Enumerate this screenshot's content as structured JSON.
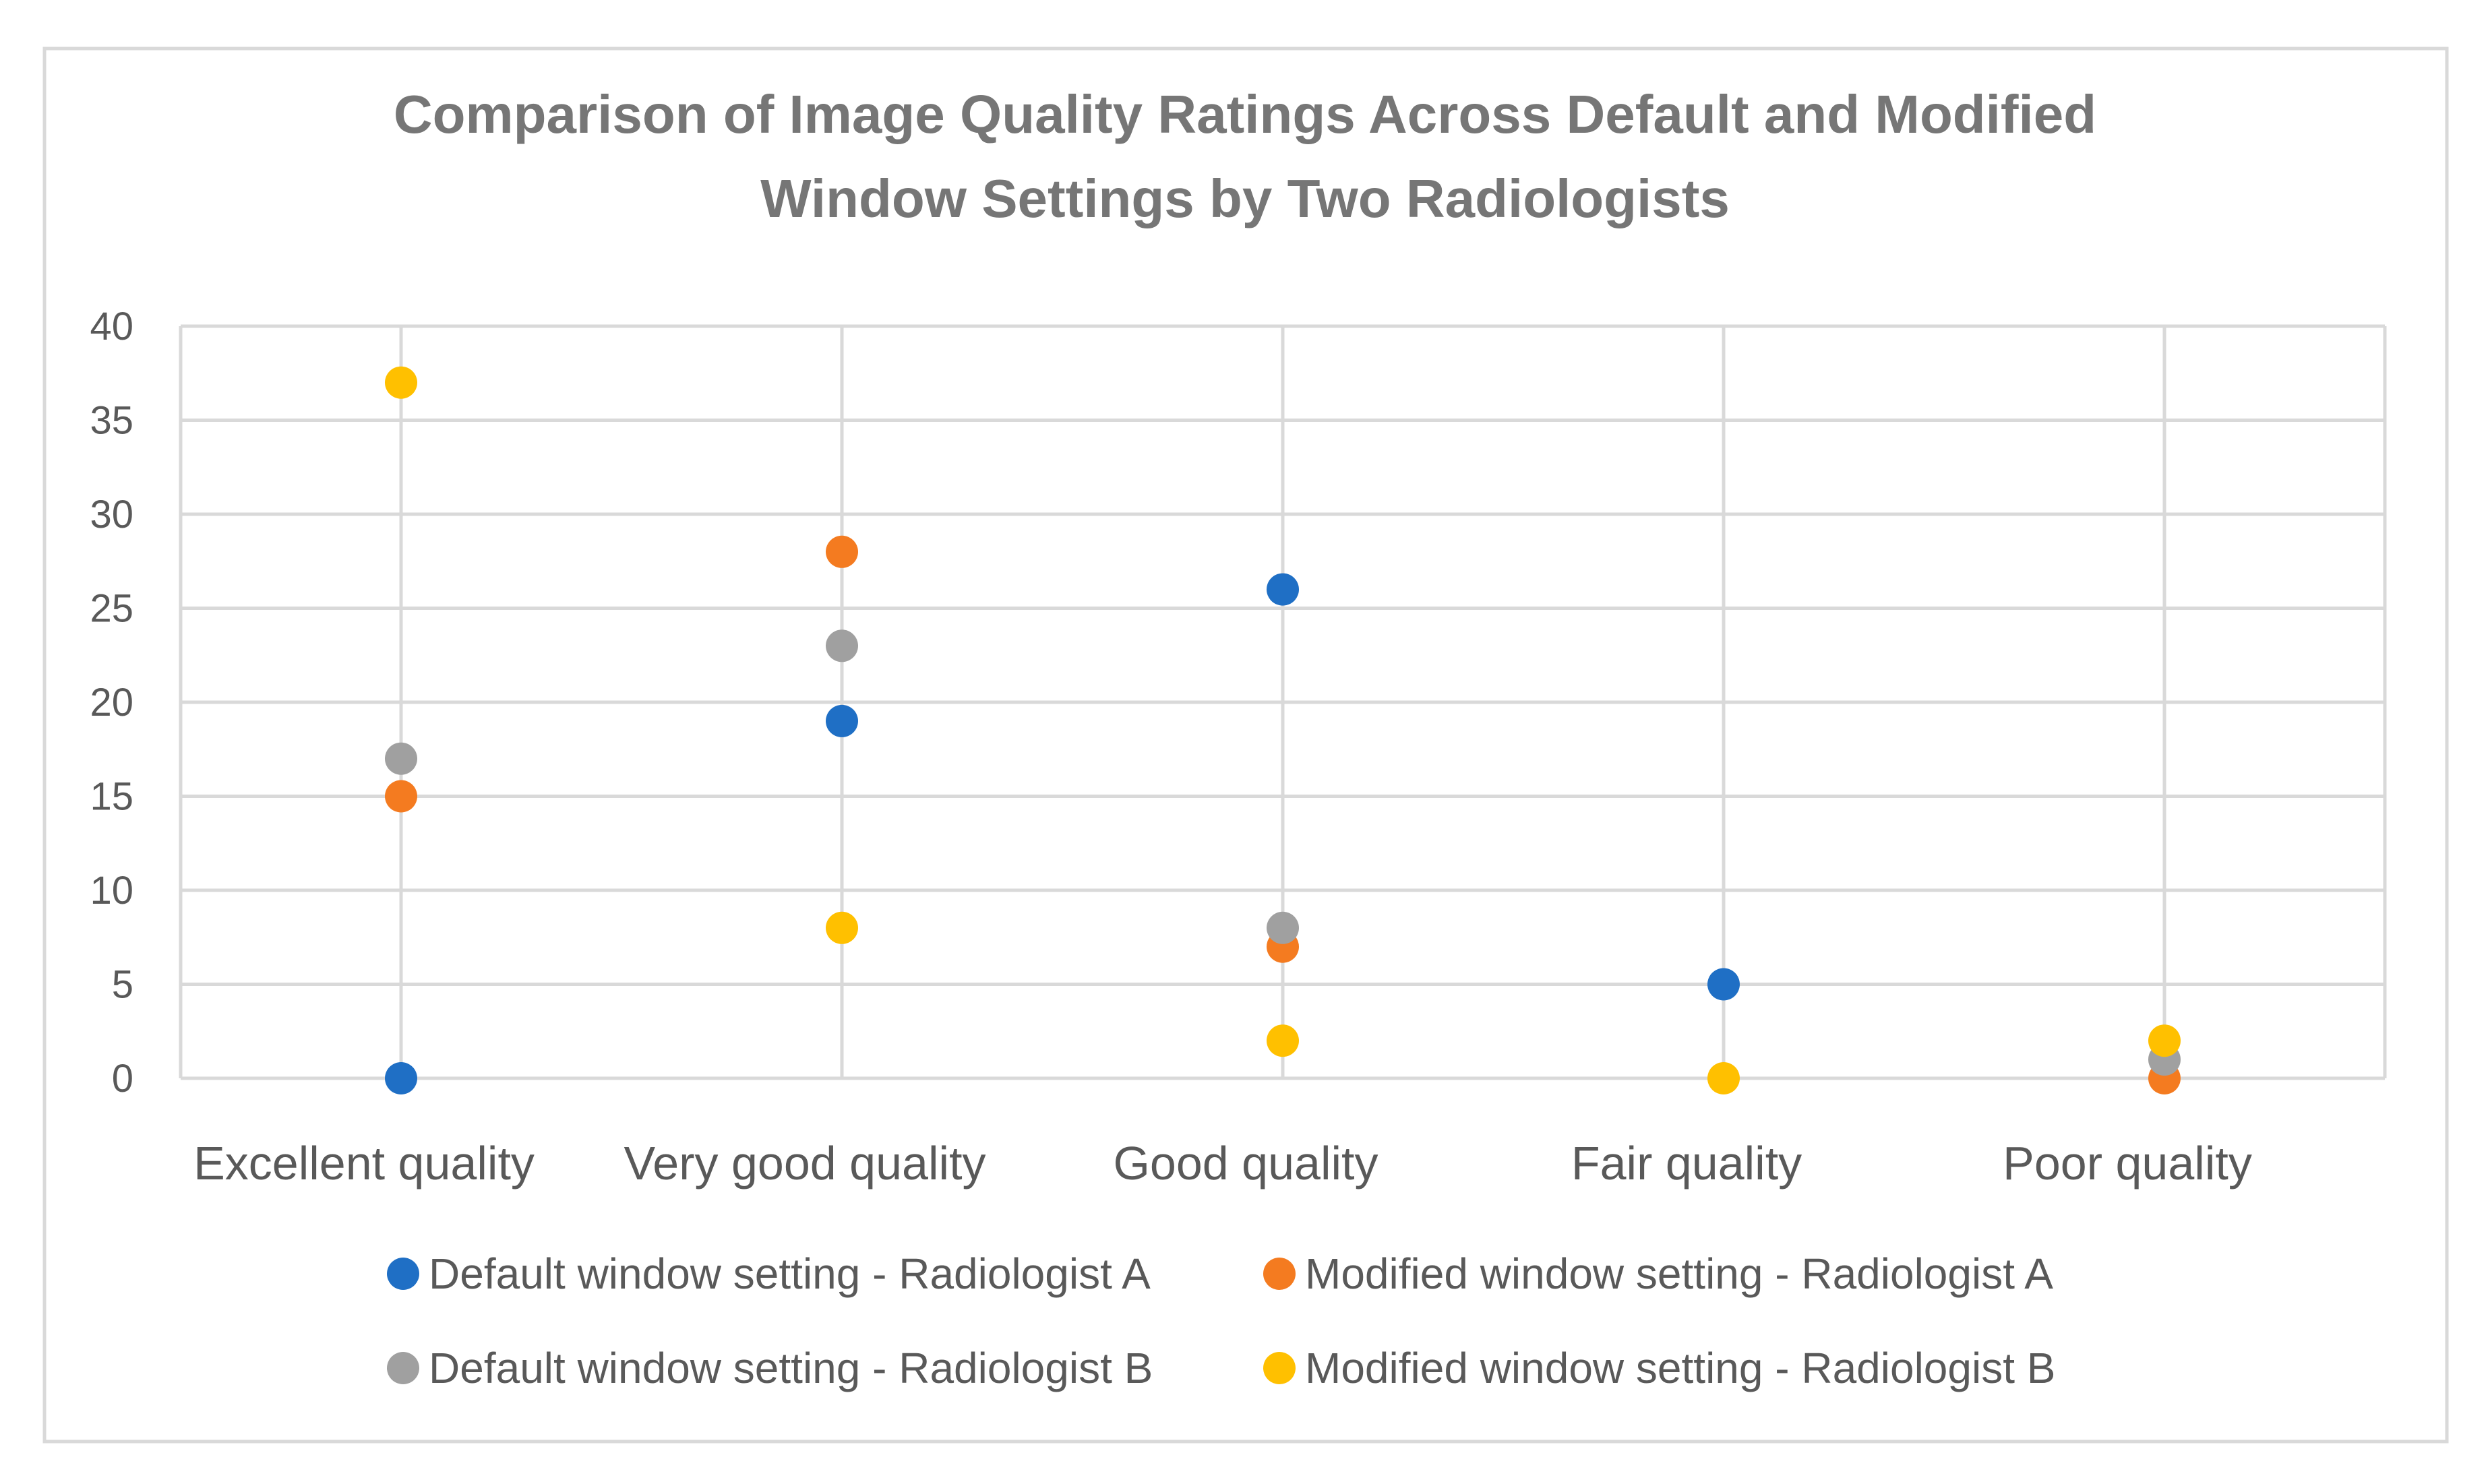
{
  "chart_data": {
    "type": "scatter",
    "title_lines": [
      "Comparison of Image Quality Ratings Across Default and Modified",
      "Window Settings by Two Radiologists"
    ],
    "xlabel": "",
    "ylabel": "",
    "categories": [
      "Excellent quality",
      "Very good quality",
      "Good quality",
      "Fair quality",
      "Poor quality"
    ],
    "ylim": [
      0,
      40
    ],
    "yticks": [
      0,
      5,
      10,
      15,
      20,
      25,
      30,
      35,
      40
    ],
    "grid": true,
    "legend_position": "bottom",
    "series": [
      {
        "name": "Default window setting - Radiologist A",
        "color": "#1f6fc5",
        "values": [
          0,
          19,
          26,
          5,
          null
        ]
      },
      {
        "name": "Modified window setting - Radiologist A",
        "color": "#f47b20",
        "values": [
          15,
          28,
          7,
          null,
          0
        ]
      },
      {
        "name": "Default window setting - Radiologist B",
        "color": "#a0a0a0",
        "values": [
          17,
          23,
          8,
          null,
          1
        ]
      },
      {
        "name": "Modified window setting - Radiologist B",
        "color": "#ffc000",
        "values": [
          37,
          8,
          2,
          0,
          2
        ]
      }
    ]
  }
}
